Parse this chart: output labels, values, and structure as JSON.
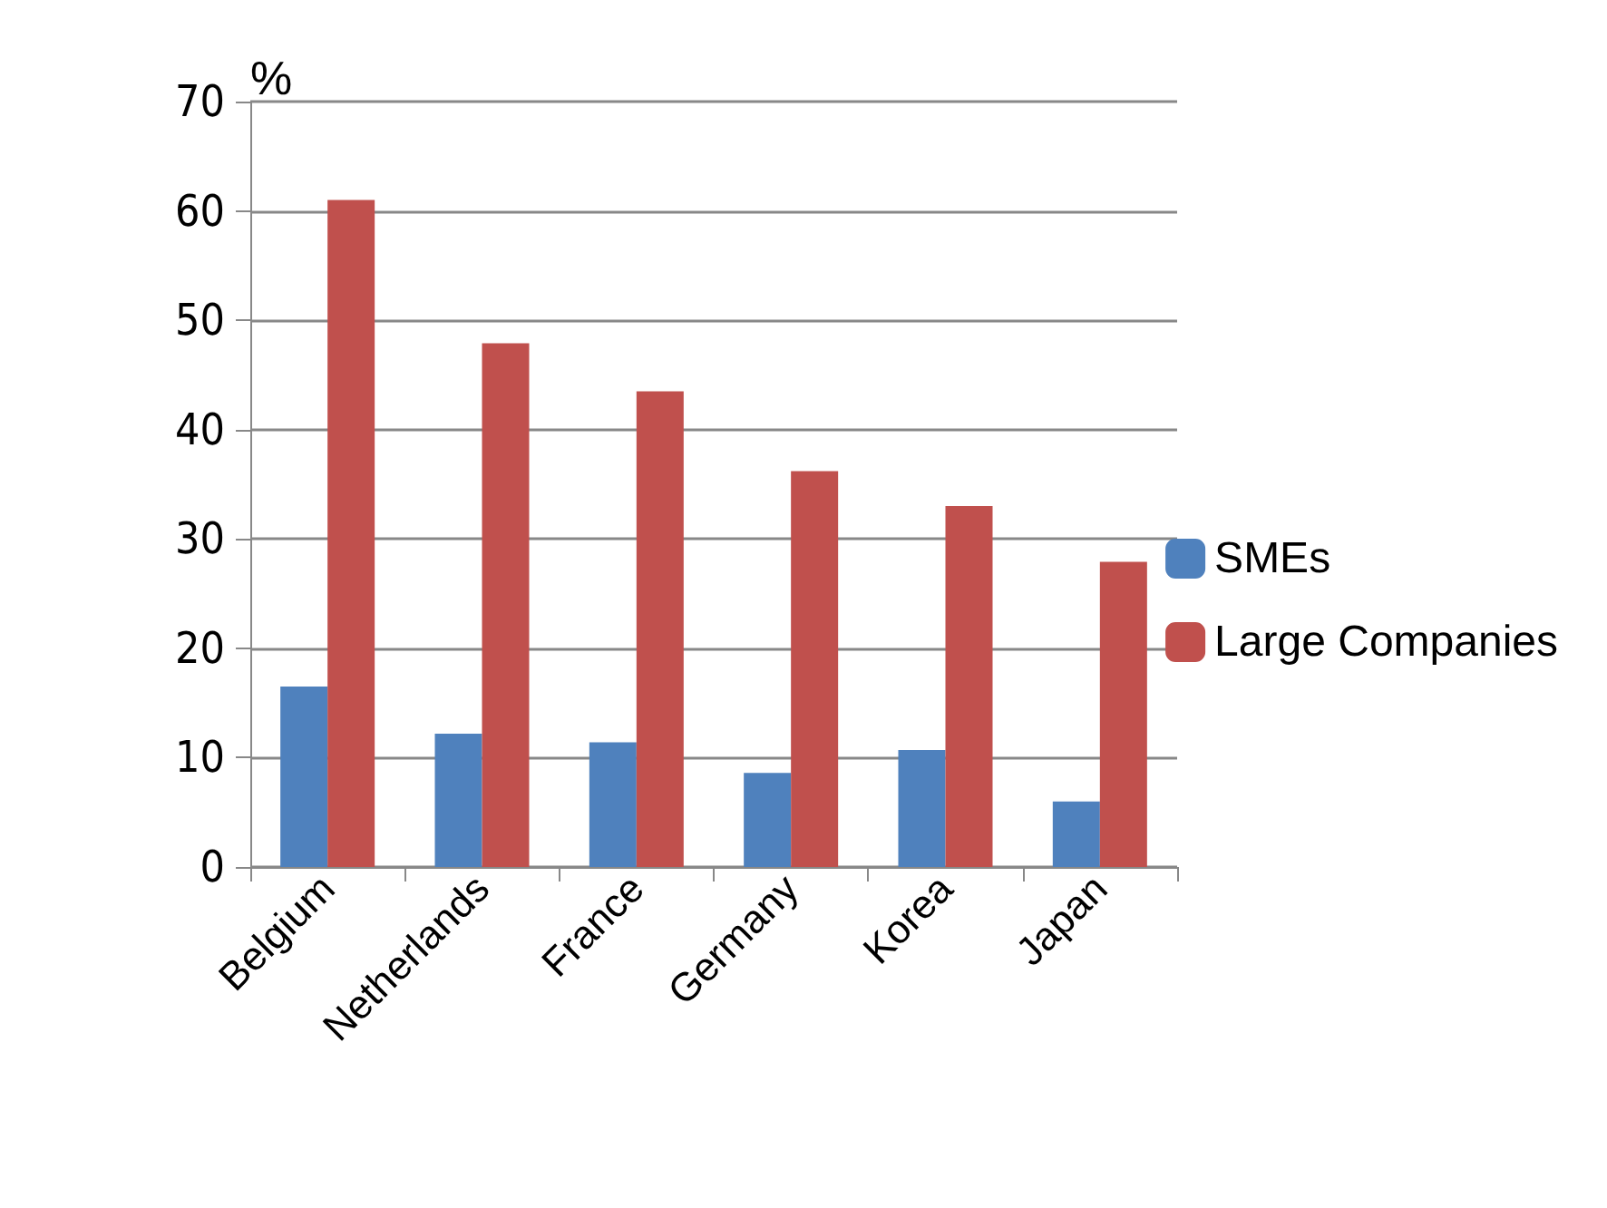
{
  "chart_data": {
    "type": "bar",
    "ylabel": "%",
    "categories": [
      "Belgium",
      "Netherlands",
      "France",
      "Germany",
      "Korea",
      "Japan"
    ],
    "series": [
      {
        "name": "SMEs",
        "color": "#4f81bd",
        "values": [
          16.5,
          12.2,
          11.4,
          8.6,
          10.7,
          6.0
        ]
      },
      {
        "name": "Large Companies",
        "color": "#c0504d",
        "values": [
          61.0,
          47.9,
          43.5,
          36.2,
          33.0,
          27.9
        ]
      }
    ],
    "ylim": [
      0,
      70
    ],
    "yticks": [
      0,
      10,
      20,
      30,
      40,
      50,
      60,
      70
    ],
    "grid": "y",
    "legend": "right"
  }
}
